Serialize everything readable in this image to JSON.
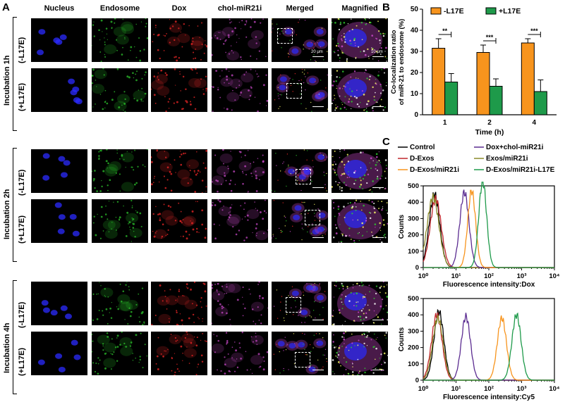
{
  "panels": {
    "a": "A",
    "b": "B",
    "c": "C"
  },
  "columns": [
    "Nucleus",
    "Endosome",
    "Dox",
    "chol-miR21i",
    "Merged",
    "Magnified"
  ],
  "groups": [
    "Incubation 1h",
    "Incubation 2h",
    "Incubation 4h"
  ],
  "rows": [
    "(-L17E)",
    "(+L17E)"
  ],
  "scalebars": {
    "merged": "20 μm",
    "magnified": "10 μm"
  },
  "colors": {
    "nucleus": "#2b2bff",
    "endosome": "#2fd02f",
    "dox": "#ff2a2a",
    "mir": "#d24bd2",
    "minus_l17e": "#f7941d",
    "plus_l17e": "#1e9a4a",
    "control": "#000000",
    "d_exos": "#c0272d",
    "dox_chol": "#5b2c91",
    "exos_mir": "#8a8a2a",
    "d_exos_mir": "#f7941d",
    "d_exos_mir_l17e": "#1e9a4a"
  },
  "chart_data": [
    {
      "type": "bar",
      "panel": "B",
      "categories": [
        "1",
        "2",
        "4"
      ],
      "series": [
        {
          "name": "-L17E",
          "values": [
            31.5,
            29.5,
            34
          ],
          "errors": [
            4.5,
            3.5,
            2
          ]
        },
        {
          "name": "+L17E",
          "values": [
            15.5,
            13.5,
            11
          ],
          "errors": [
            4,
            3.5,
            5.5
          ]
        }
      ],
      "significance": [
        "**",
        "***",
        "***"
      ],
      "xlabel": "Time (h)",
      "ylabel": "Co-localization ratio of miR-21 to endosome (%)",
      "ylabel_lines": [
        "Co-localization ratio",
        "of miR-21 to endosome (%)"
      ],
      "ylim": [
        0,
        50
      ],
      "yticks": [
        0,
        10,
        20,
        30,
        40,
        50
      ],
      "legend": "top"
    },
    {
      "type": "line",
      "panel": "C-top",
      "xscale": "log",
      "xlim": [
        1,
        10000
      ],
      "xticks": [
        "10⁰",
        "10¹",
        "10²",
        "10³",
        "10⁴"
      ],
      "ylim": [
        0,
        500
      ],
      "yticks": [
        0,
        100,
        200,
        300,
        400,
        500
      ],
      "xlabel": "Fluorescence intensity:Dox",
      "ylabel": "Counts",
      "series": [
        {
          "name": "Control",
          "peak_x": 2.2,
          "peak_y": 450,
          "width": 0.16
        },
        {
          "name": "D-Exos",
          "peak_x": 2.4,
          "peak_y": 420,
          "width": 0.17
        },
        {
          "name": "Exos/miR21i",
          "peak_x": 2.0,
          "peak_y": 430,
          "width": 0.18
        },
        {
          "name": "Dox+chol-miR21i",
          "peak_x": 18,
          "peak_y": 460,
          "width": 0.14
        },
        {
          "name": "D-Exos/miR21i",
          "peak_x": 30,
          "peak_y": 470,
          "width": 0.12
        },
        {
          "name": "D-Exos/miR21i-L17E",
          "peak_x": 65,
          "peak_y": 530,
          "width": 0.12
        }
      ]
    },
    {
      "type": "line",
      "panel": "C-bottom",
      "xscale": "log",
      "xlim": [
        1,
        10000
      ],
      "xticks": [
        "10⁰",
        "10¹",
        "10²",
        "10³",
        "10⁴"
      ],
      "ylim": [
        0,
        500
      ],
      "yticks": [
        0,
        100,
        200,
        300,
        400,
        500
      ],
      "xlabel": "Fluorescence intensity:Cy5",
      "ylabel": "Counts",
      "series": [
        {
          "name": "Control",
          "peak_x": 3.0,
          "peak_y": 420,
          "width": 0.15
        },
        {
          "name": "D-Exos",
          "peak_x": 2.6,
          "peak_y": 400,
          "width": 0.16
        },
        {
          "name": "Exos/miR21i",
          "peak_x": 2.8,
          "peak_y": 380,
          "width": 0.16
        },
        {
          "name": "Dox+chol-miR21i",
          "peak_x": 20,
          "peak_y": 390,
          "width": 0.14
        },
        {
          "name": "D-Exos/miR21i",
          "peak_x": 250,
          "peak_y": 380,
          "width": 0.14
        },
        {
          "name": "D-Exos/miR21i-L17E",
          "peak_x": 700,
          "peak_y": 400,
          "width": 0.14
        }
      ]
    }
  ],
  "legend_c": [
    "Control",
    "Dox+chol-miR21i",
    "D-Exos",
    "Exos/miR21i",
    "D-Exos/miR21i",
    "D-Exos/miR21i-L17E"
  ]
}
